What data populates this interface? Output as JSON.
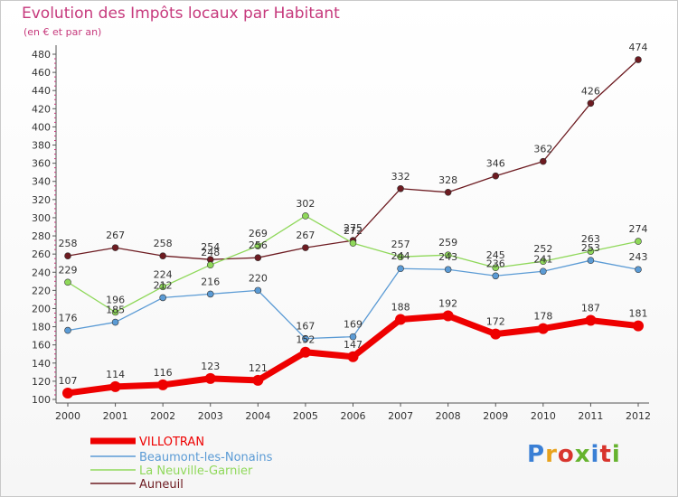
{
  "title": "Evolution des Impôts locaux par Habitant",
  "subtitle": "(en € et par an)",
  "logo": {
    "text": "Proxiti",
    "colors": [
      "#3a7fd5",
      "#e8a21c",
      "#d8342c",
      "#66b32e",
      "#3a7fd5",
      "#d8342c",
      "#66b32e"
    ]
  },
  "chart_data": {
    "type": "line",
    "x": [
      2000,
      2001,
      2002,
      2003,
      2004,
      2005,
      2006,
      2007,
      2008,
      2009,
      2010,
      2011,
      2012
    ],
    "ylim": [
      100,
      480
    ],
    "yticks": [
      100,
      120,
      140,
      160,
      180,
      200,
      220,
      240,
      260,
      280,
      300,
      320,
      340,
      360,
      380,
      400,
      420,
      440,
      460,
      480
    ],
    "grid": false,
    "legend": "bottom-left",
    "series": [
      {
        "name": "VILLOTRAN",
        "color": "#ee0000",
        "values": [
          107,
          114,
          116,
          123,
          121,
          152,
          147,
          188,
          192,
          172,
          178,
          187,
          181
        ]
      },
      {
        "name": "Beaumont-les-Nonains",
        "color": "#5b9bd5",
        "values": [
          176,
          185,
          212,
          216,
          220,
          167,
          169,
          244,
          243,
          236,
          241,
          253,
          243
        ]
      },
      {
        "name": "La Neuville-Garnier",
        "color": "#8fd85a",
        "values": [
          229,
          196,
          224,
          248,
          269,
          302,
          272,
          257,
          259,
          245,
          252,
          263,
          274
        ]
      },
      {
        "name": "Auneuil",
        "color": "#6d1b21",
        "values": [
          258,
          267,
          258,
          254,
          256,
          267,
          275,
          332,
          328,
          346,
          362,
          426,
          474
        ]
      }
    ],
    "data_labels": [
      {
        "series": "VILLOTRAN",
        "labels": [
          "107",
          "114",
          "116",
          "123",
          "121",
          "152",
          "147",
          "188",
          "192",
          "172",
          "178",
          "187",
          "181"
        ]
      },
      {
        "series": "Beaumont-les-Nonains",
        "labels": [
          "176",
          "185",
          "212",
          "216",
          "220",
          "167",
          "169",
          "244",
          "243",
          "236",
          "241",
          "253",
          "243"
        ]
      },
      {
        "series": "La Neuville-Garnier",
        "labels": [
          "229",
          "196",
          "224",
          "248",
          "269",
          "302",
          "272",
          "257",
          "259",
          "245",
          "252",
          "263",
          "274"
        ]
      },
      {
        "series": "Auneuil",
        "labels": [
          "258",
          "267",
          "258",
          "254",
          "256",
          "267",
          "275",
          "332",
          "328",
          "346",
          "362",
          "426",
          "474"
        ]
      }
    ]
  }
}
